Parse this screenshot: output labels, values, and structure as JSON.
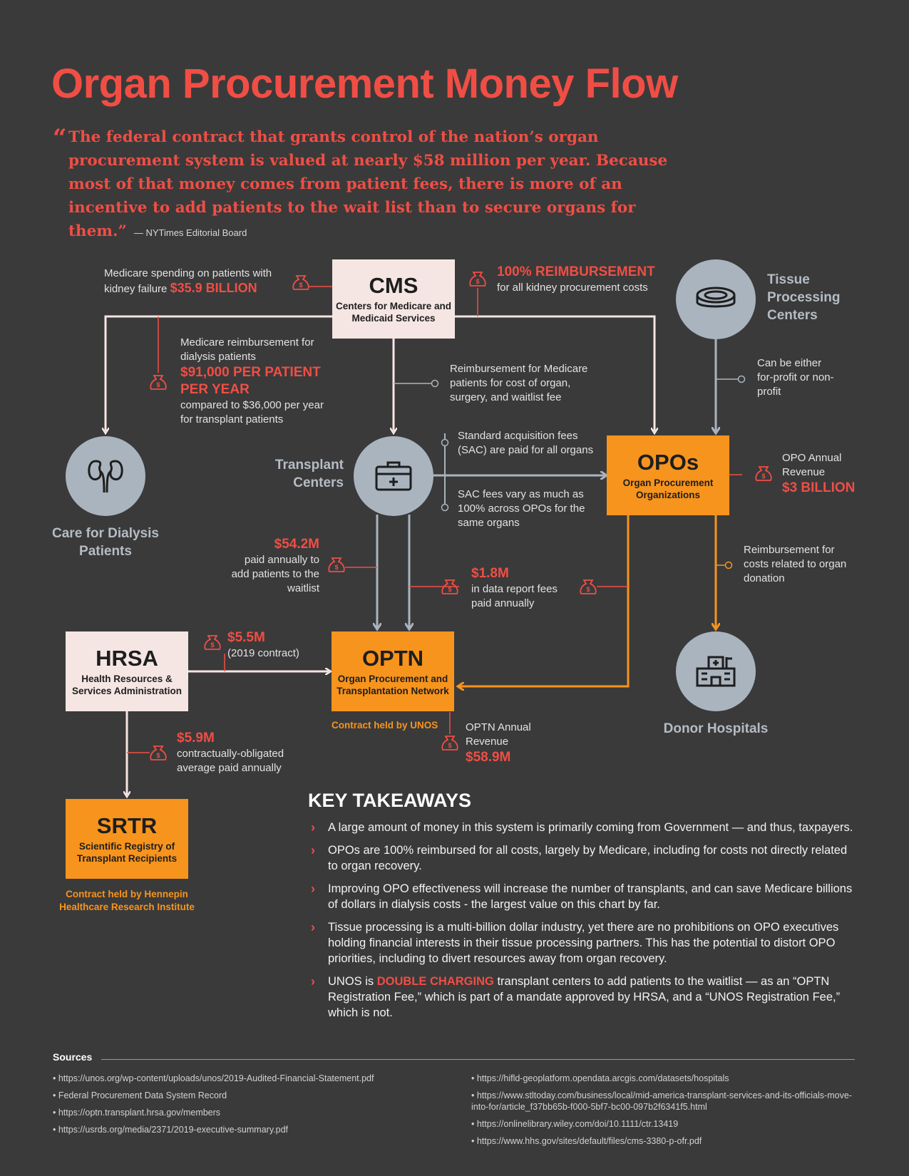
{
  "title": "Organ Procurement Money Flow",
  "quote": {
    "mark": "“",
    "text": "The federal contract that grants control of the nation’s organ procurement system is valued at nearly $58 million per year. Because most of that money comes from patient fees, there is more of an incentive to add patients to the wait list than to secure organs for them.”",
    "attribution": "— NYTimes Editorial Board"
  },
  "colors": {
    "accent_red": "#f04e45",
    "accent_orange": "#f7941d",
    "node_gray": "#aab4be",
    "box_pale": "#f5e6e3",
    "background": "#3a3a3a"
  },
  "nodes": {
    "cms": {
      "title": "CMS",
      "subtitle": "Centers for Medicare and Medicaid Services"
    },
    "opos": {
      "title": "OPOs",
      "subtitle": "Organ Procurement Organizations"
    },
    "optn": {
      "title": "OPTN",
      "subtitle": "Organ Procurement and Transplantation Network",
      "holder": "Contract held by UNOS"
    },
    "hrsa": {
      "title": "HRSA",
      "subtitle": "Health Resources & Services Administration"
    },
    "srtr": {
      "title": "SRTR",
      "subtitle": "Scientific Registry of Transplant Recipients",
      "holder": "Contract held by Hennepin Healthcare Research Institute"
    },
    "tissue": {
      "name": "Tissue Processing Centers",
      "icon": "petri-dish-icon"
    },
    "transplant": {
      "name": "Transplant Centers",
      "icon": "medical-kit-icon"
    },
    "dialysis": {
      "name": "Care for Dialysis Patients",
      "icon": "kidneys-icon"
    },
    "donor": {
      "name": "Donor Hospitals",
      "icon": "hospital-icon"
    }
  },
  "annotations": {
    "medicare_spending": {
      "text": "Medicare spending on patients with kidney failure",
      "amount": "$35.9 BILLION"
    },
    "reimbursement_100": {
      "heading": "100% REIMBURSEMENT",
      "text": "for all kidney procurement costs"
    },
    "dialysis_reimb": {
      "text1": "Medicare reimbursement for dialysis patients",
      "amount": "$91,000 PER PATIENT PER YEAR",
      "text2": "compared to $36,000 per year for transplant patients"
    },
    "transplant_reimb": {
      "text": "Reimbursement for Medicare patients for cost of organ, surgery, and waitlist fee"
    },
    "tissue_profit": {
      "text": "Can be either for-profit or non-profit"
    },
    "sac_fees": {
      "text": "Standard acquisition fees (SAC) are paid for all organs"
    },
    "sac_vary": {
      "text": "SAC fees vary as much as 100% across OPOs for the same organs"
    },
    "opo_revenue": {
      "text": "OPO Annual Revenue",
      "amount": "$3 BILLION"
    },
    "waitlist": {
      "amount": "$54.2M",
      "text": "paid annually to add patients to the waitlist"
    },
    "data_fees": {
      "amount": "$1.8M",
      "text": "in data report fees paid annually"
    },
    "donation_reimb": {
      "text": "Reimbursement for costs related to organ donation"
    },
    "hrsa_contract": {
      "amount": "$5.5M",
      "text": "(2019 contract)"
    },
    "srtr_payment": {
      "amount": "$5.9M",
      "text": "contractually-obligated average paid annually"
    },
    "optn_revenue": {
      "text": "OPTN Annual Revenue",
      "amount": "$58.9M"
    }
  },
  "key_takeaways": {
    "title": "KEY TAKEAWAYS",
    "items": [
      "A large amount of money in this system is primarily coming from Government — and thus, taxpayers.",
      "OPOs are 100% reimbursed for all costs, largely by Medicare, including for costs not directly related to organ recovery.",
      "Improving OPO effectiveness will increase the number of transplants, and can save Medicare billions of dollars in dialysis costs - the largest value on this chart by far.",
      "Tissue processing is a multi-billion dollar industry, yet there are no prohibitions on OPO executives holding financial interests in their tissue processing partners. This has the potential to distort OPO priorities, including to divert resources away from organ recovery."
    ],
    "item5": {
      "before": "UNOS is ",
      "highlight": "DOUBLE CHARGING",
      "after": " transplant centers  to add patients to the waitlist — as an “OPTN Registration Fee,” which is part of a mandate approved by HRSA, and a “UNOS Registration Fee,” which is not."
    }
  },
  "sources": {
    "title": "Sources",
    "left": [
      "• https://unos.org/wp-content/uploads/unos/2019-Audited-Financial-Statement.pdf",
      "• Federal Procurement Data System Record",
      "• https://optn.transplant.hrsa.gov/members",
      "• https://usrds.org/media/2371/2019-executive-summary.pdf"
    ],
    "right": [
      "• https://hifld-geoplatform.opendata.arcgis.com/datasets/hospitals",
      "• https://www.stltoday.com/business/local/mid-america-transplant-services-and-its-officials-move-into-for/article_f37bb65b-f000-5bf7-bc00-097b2f6341f5.html",
      "• https://onlinelibrary.wiley.com/doi/10.1111/ctr.13419",
      "• https://www.hhs.gov/sites/default/files/cms-3380-p-ofr.pdf"
    ]
  }
}
